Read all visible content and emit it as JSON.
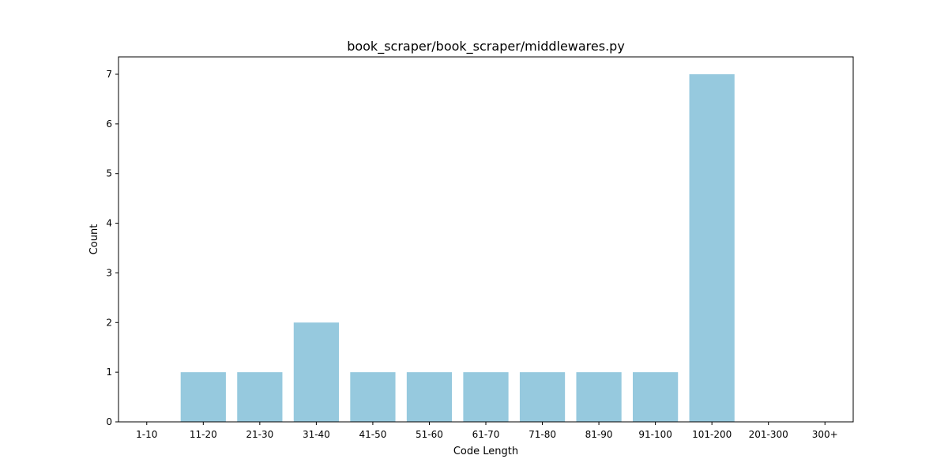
{
  "chart_data": {
    "type": "bar",
    "title": "book_scraper/book_scraper/middlewares.py",
    "xlabel": "Code Length",
    "ylabel": "Count",
    "categories": [
      "1-10",
      "11-20",
      "21-30",
      "31-40",
      "41-50",
      "51-60",
      "61-70",
      "71-80",
      "81-90",
      "91-100",
      "101-200",
      "201-300",
      "300+"
    ],
    "values": [
      0,
      1,
      1,
      2,
      1,
      1,
      1,
      1,
      1,
      1,
      7,
      0,
      0
    ],
    "yticks": [
      0,
      1,
      2,
      3,
      4,
      5,
      6,
      7
    ],
    "ylim": [
      0,
      7.35
    ],
    "grid": false,
    "bar_color": "#96c9de"
  }
}
